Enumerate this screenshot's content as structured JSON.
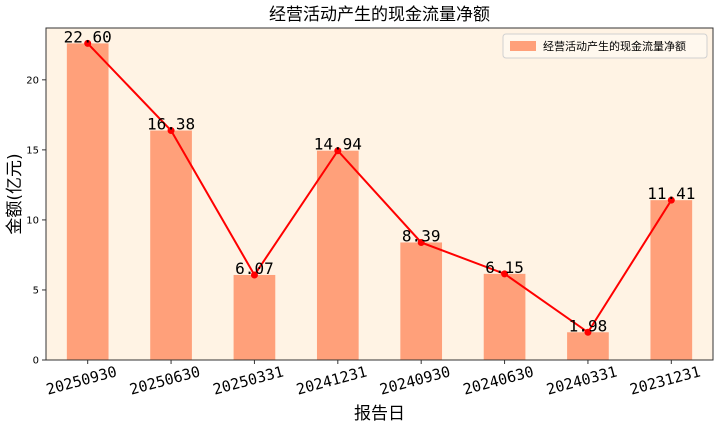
{
  "chart_data": {
    "type": "bar",
    "title": "经营活动产生的现金流量净额",
    "xlabel": "报告日",
    "ylabel": "金额(亿元)",
    "categories": [
      "20250930",
      "20250630",
      "20250331",
      "20241231",
      "20240930",
      "20240630",
      "20240331",
      "20231231"
    ],
    "series": [
      {
        "name": "经营活动产生的现金流量净额",
        "values": [
          22.6,
          16.38,
          6.07,
          14.94,
          8.39,
          6.15,
          1.98,
          11.41
        ]
      }
    ],
    "value_labels": [
      "22.60",
      "16.38",
      "6.07",
      "14.94",
      "8.39",
      "6.15",
      "1.98",
      "11.41"
    ],
    "yticks": [
      0,
      5,
      10,
      15,
      20
    ],
    "ylim": [
      0,
      23.7
    ],
    "legend_position": "top-right",
    "overlay_line": true,
    "colors": {
      "bar": "#FFA07A",
      "line": "#FF0000",
      "plot_background": "#FFF3E4",
      "axes": "#333333"
    }
  }
}
